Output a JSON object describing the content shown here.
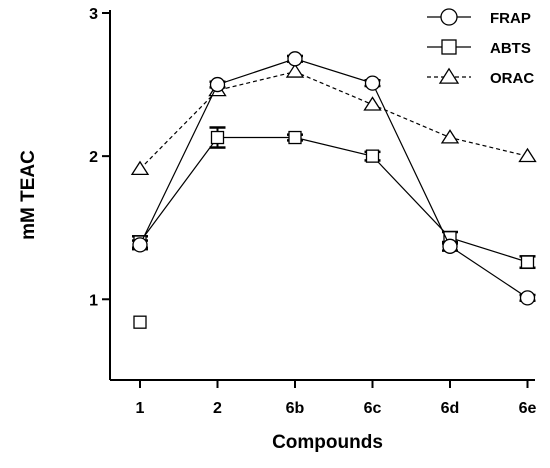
{
  "chart_data": {
    "type": "line",
    "title": "",
    "xlabel": "Compounds",
    "ylabel": "mM TEAC",
    "categories": [
      "1",
      "2",
      "6b",
      "6c",
      "6d",
      "6e"
    ],
    "yticks": [
      "1",
      "2",
      "3"
    ],
    "ylim": [
      0.45,
      3.0
    ],
    "grid": false,
    "legend_position": "top-right",
    "series": [
      {
        "name": "FRAP",
        "marker": "circle",
        "line_style": "solid",
        "values": [
          1.38,
          2.5,
          2.68,
          2.51,
          1.37,
          1.01
        ],
        "errors": [
          0.03,
          0.02,
          0.02,
          0.02,
          0.03,
          0.02
        ]
      },
      {
        "name": "ABTS",
        "marker": "square",
        "line_style": "solid",
        "values": [
          1.4,
          2.13,
          2.13,
          2.0,
          1.43,
          1.26
        ],
        "errors": [
          0.04,
          0.07,
          0.02,
          0.03,
          0.04,
          0.04
        ]
      },
      {
        "name": "ORAC",
        "marker": "triangle",
        "line_style": "dashed",
        "values": [
          1.91,
          2.46,
          2.59,
          2.36,
          2.13,
          2.0
        ],
        "errors": [
          0,
          0,
          0,
          0,
          0,
          0
        ]
      }
    ],
    "outliers": [
      {
        "series": "ABTS",
        "category": "1",
        "value": 0.84
      }
    ],
    "colors": {
      "line": "#000000",
      "marker_fill": "#ffffff"
    }
  }
}
